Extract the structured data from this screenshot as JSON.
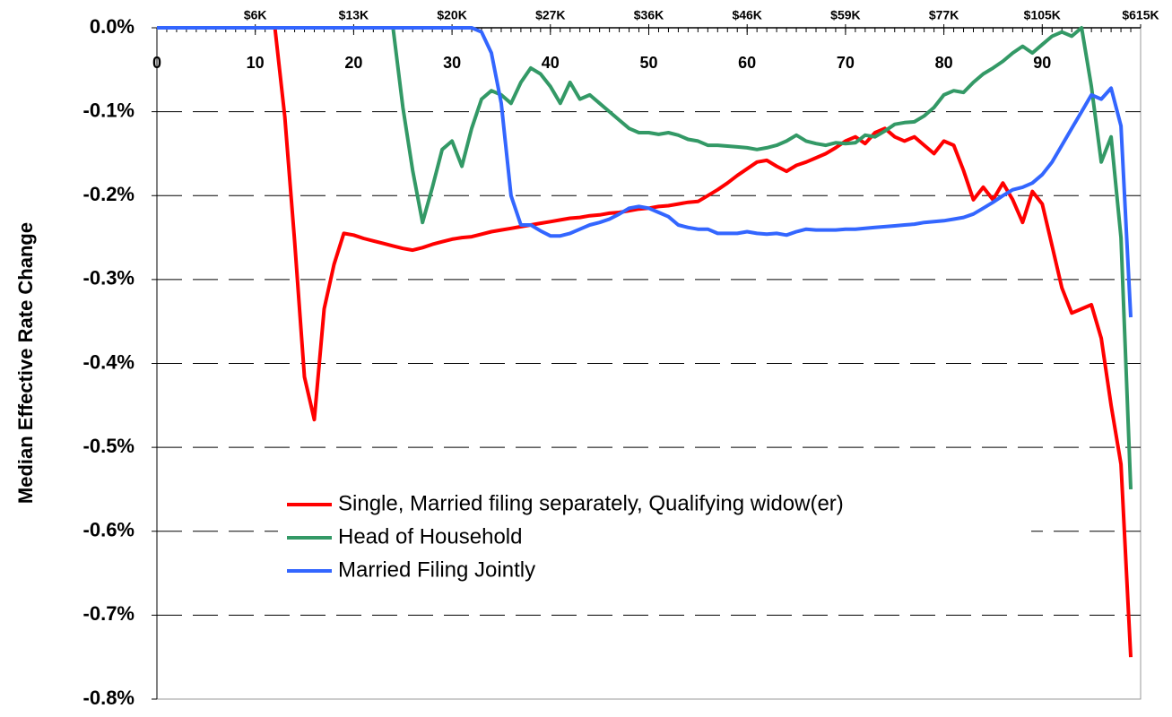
{
  "chart_data": {
    "type": "line",
    "y_label": "Median Effective Rate Change",
    "x": [
      0,
      1,
      2,
      3,
      4,
      5,
      6,
      7,
      8,
      9,
      10,
      11,
      12,
      13,
      14,
      15,
      16,
      17,
      18,
      19,
      20,
      21,
      22,
      23,
      24,
      25,
      26,
      27,
      28,
      29,
      30,
      31,
      32,
      33,
      34,
      35,
      36,
      37,
      38,
      39,
      40,
      41,
      42,
      43,
      44,
      45,
      46,
      47,
      48,
      49,
      50,
      51,
      52,
      53,
      54,
      55,
      56,
      57,
      58,
      59,
      60,
      61,
      62,
      63,
      64,
      65,
      66,
      67,
      68,
      69,
      70,
      71,
      72,
      73,
      74,
      75,
      76,
      77,
      78,
      79,
      80,
      81,
      82,
      83,
      84,
      85,
      86,
      87,
      88,
      89,
      90,
      91,
      92,
      93,
      94,
      95,
      96,
      97,
      98,
      99
    ],
    "series": [
      {
        "name": "Single, Married filing separately, Qualifying widow(er)",
        "color": "#ff0000",
        "values": [
          0,
          0,
          0,
          0,
          0,
          0,
          0,
          0,
          0,
          0,
          0,
          0,
          0,
          -0.106,
          -0.255,
          -0.416,
          -0.467,
          -0.335,
          -0.282,
          -0.245,
          -0.247,
          -0.251,
          -0.254,
          -0.257,
          -0.26,
          -0.263,
          -0.265,
          -0.262,
          -0.258,
          -0.255,
          -0.252,
          -0.25,
          -0.249,
          -0.246,
          -0.243,
          -0.241,
          -0.239,
          -0.237,
          -0.235,
          -0.233,
          -0.231,
          -0.229,
          -0.227,
          -0.226,
          -0.224,
          -0.223,
          -0.221,
          -0.22,
          -0.218,
          -0.216,
          -0.215,
          -0.213,
          -0.212,
          -0.21,
          -0.208,
          -0.207,
          -0.2,
          -0.193,
          -0.185,
          -0.176,
          -0.168,
          -0.16,
          -0.158,
          -0.165,
          -0.171,
          -0.164,
          -0.16,
          -0.155,
          -0.15,
          -0.143,
          -0.135,
          -0.13,
          -0.138,
          -0.125,
          -0.12,
          -0.13,
          -0.135,
          -0.13,
          -0.14,
          -0.15,
          -0.135,
          -0.14,
          -0.17,
          -0.205,
          -0.19,
          -0.205,
          -0.185,
          -0.205,
          -0.232,
          -0.195,
          -0.21,
          -0.26,
          -0.31,
          -0.34,
          -0.335,
          -0.33,
          -0.37,
          -0.45,
          -0.52,
          -0.75
        ]
      },
      {
        "name": "Head of Household",
        "color": "#339966",
        "values": [
          0,
          0,
          0,
          0,
          0,
          0,
          0,
          0,
          0,
          0,
          0,
          0,
          0,
          0,
          0,
          0,
          0,
          0,
          0,
          0,
          0,
          0,
          0,
          0,
          0,
          -0.095,
          -0.17,
          -0.232,
          -0.19,
          -0.145,
          -0.135,
          -0.165,
          -0.12,
          -0.085,
          -0.075,
          -0.08,
          -0.09,
          -0.065,
          -0.048,
          -0.055,
          -0.07,
          -0.09,
          -0.065,
          -0.085,
          -0.08,
          -0.09,
          -0.1,
          -0.11,
          -0.12,
          -0.125,
          -0.125,
          -0.127,
          -0.125,
          -0.128,
          -0.133,
          -0.135,
          -0.14,
          -0.14,
          -0.141,
          -0.142,
          -0.143,
          -0.145,
          -0.143,
          -0.14,
          -0.135,
          -0.128,
          -0.135,
          -0.138,
          -0.14,
          -0.137,
          -0.138,
          -0.137,
          -0.128,
          -0.13,
          -0.123,
          -0.115,
          -0.113,
          -0.112,
          -0.105,
          -0.095,
          -0.08,
          -0.075,
          -0.077,
          -0.065,
          -0.055,
          -0.048,
          -0.04,
          -0.03,
          -0.022,
          -0.03,
          -0.02,
          -0.01,
          -0.005,
          -0.01,
          0,
          -0.07,
          -0.16,
          -0.13,
          -0.25,
          -0.55
        ]
      },
      {
        "name": "Married Filing Jointly",
        "color": "#3366ff",
        "values": [
          0,
          0,
          0,
          0,
          0,
          0,
          0,
          0,
          0,
          0,
          0,
          0,
          0,
          0,
          0,
          0,
          0,
          0,
          0,
          0,
          0,
          0,
          0,
          0,
          0,
          0,
          0,
          0,
          0,
          0,
          0,
          0,
          0,
          -0.005,
          -0.03,
          -0.09,
          -0.2,
          -0.235,
          -0.235,
          -0.242,
          -0.248,
          -0.248,
          -0.245,
          -0.24,
          -0.235,
          -0.232,
          -0.228,
          -0.222,
          -0.215,
          -0.213,
          -0.215,
          -0.22,
          -0.225,
          -0.235,
          -0.238,
          -0.24,
          -0.24,
          -0.245,
          -0.245,
          -0.245,
          -0.243,
          -0.245,
          -0.246,
          -0.245,
          -0.247,
          -0.243,
          -0.24,
          -0.241,
          -0.241,
          -0.241,
          -0.24,
          -0.24,
          -0.239,
          -0.238,
          -0.237,
          -0.236,
          -0.235,
          -0.234,
          -0.232,
          -0.231,
          -0.23,
          -0.228,
          -0.226,
          -0.222,
          -0.215,
          -0.208,
          -0.2,
          -0.193,
          -0.19,
          -0.185,
          -0.175,
          -0.16,
          -0.14,
          -0.12,
          -0.1,
          -0.08,
          -0.085,
          -0.072,
          -0.117,
          -0.345
        ]
      }
    ],
    "xlim": [
      0,
      100
    ],
    "xticks": [
      0,
      10,
      20,
      30,
      40,
      50,
      60,
      70,
      80,
      90
    ],
    "x2ticks": [
      {
        "value": 10,
        "label": "$6K"
      },
      {
        "value": 20,
        "label": "$13K"
      },
      {
        "value": 30,
        "label": "$20K"
      },
      {
        "value": 40,
        "label": "$27K"
      },
      {
        "value": 50,
        "label": "$36K"
      },
      {
        "value": 60,
        "label": "$46K"
      },
      {
        "value": 70,
        "label": "$59K"
      },
      {
        "value": 80,
        "label": "$77K"
      },
      {
        "value": 90,
        "label": "$105K"
      },
      {
        "value": 100,
        "label": "$615K"
      }
    ],
    "ylim": [
      -0.8,
      0
    ],
    "yticks": [
      {
        "value": 0,
        "label": "0.0%"
      },
      {
        "value": -0.1,
        "label": "-0.1%"
      },
      {
        "value": -0.2,
        "label": "-0.2%"
      },
      {
        "value": -0.3,
        "label": "-0.3%"
      },
      {
        "value": -0.4,
        "label": "-0.4%"
      },
      {
        "value": -0.5,
        "label": "-0.5%"
      },
      {
        "value": -0.6,
        "label": "-0.6%"
      },
      {
        "value": -0.7,
        "label": "-0.7%"
      },
      {
        "value": -0.8,
        "label": "-0.8%"
      }
    ],
    "grid": true,
    "legend": "lower center"
  }
}
